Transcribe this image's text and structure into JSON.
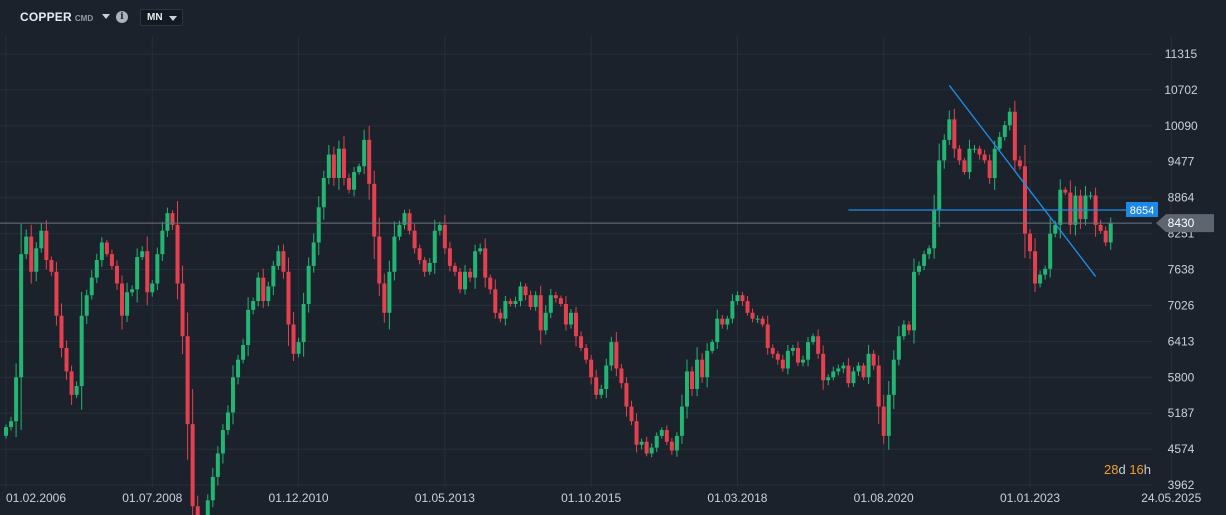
{
  "toolbar": {
    "symbol": "COPPER",
    "exchange": "CMD",
    "timeframe": "MN"
  },
  "countdown": {
    "d": "28",
    "d_unit": "d",
    "h": "16",
    "h_unit": "h"
  },
  "colors": {
    "background": "#1b222b",
    "grid": "#263039",
    "up": "#22b573",
    "down": "#e5404f",
    "trendline": "#1e90e8",
    "price_tag": "#1e88e5",
    "current_tag": "#5d6670"
  },
  "chart_data": {
    "type": "candlestick",
    "title": "",
    "y_ticks": [
      3962,
      4574,
      5187,
      5800,
      6413,
      7026,
      7638,
      8251,
      8864,
      9477,
      10090,
      10702,
      11315
    ],
    "x_ticks": [
      "01.02.2006",
      "01.07.2008",
      "01.12.2010",
      "01.05.2013",
      "01.10.2015",
      "01.03.2018",
      "01.08.2020",
      "01.01.2023",
      "24.05.2025"
    ],
    "current_price": 8430,
    "horizontal_line": {
      "price": 8654,
      "label": "8654"
    },
    "trendline": {
      "from": {
        "date": "01.09.2021",
        "price": 10780
      },
      "to": {
        "date": "01.02.2024",
        "price": 7520
      }
    },
    "grid": true,
    "series": [
      {
        "interval": "monthly",
        "start": "01.02.2006",
        "closes": [
          4950,
          5050,
          5800,
          7900,
          8200,
          7600,
          8000,
          8300,
          7800,
          7600,
          6850,
          6300,
          5900,
          5500,
          5650,
          6850,
          7200,
          7500,
          7800,
          8100,
          7900,
          7700,
          7400,
          6850,
          7250,
          7300,
          7850,
          7950,
          7250,
          7400,
          7900,
          8300,
          8600,
          8400,
          7400,
          6500,
          5000,
          3600,
          3100,
          3250,
          3700,
          4100,
          4500,
          4900,
          5200,
          5800,
          6100,
          6350,
          6950,
          7100,
          7500,
          7100,
          7350,
          7700,
          7950,
          7600,
          6700,
          6200,
          6400,
          7050,
          7700,
          8100,
          8700,
          9200,
          9600,
          9200,
          9700,
          9200,
          9000,
          9300,
          9400,
          9850,
          9100,
          8200,
          7400,
          6900,
          7600,
          8200,
          8400,
          8600,
          8300,
          8000,
          7800,
          7600,
          7750,
          8300,
          8400,
          8000,
          7700,
          7600,
          7300,
          7600,
          7500,
          7950,
          8000,
          7500,
          7300,
          6900,
          6800,
          7100,
          7050,
          7100,
          7350,
          7200,
          7000,
          7200,
          6600,
          6900,
          7200,
          7150,
          7050,
          6700,
          6900,
          6500,
          6300,
          6100,
          5800,
          5500,
          5600,
          6000,
          6400,
          5950,
          5700,
          5300,
          5050,
          4650,
          4700,
          4500,
          4600,
          4800,
          4900,
          4700,
          4550,
          4800,
          5300,
          5900,
          5600,
          6100,
          5800,
          6250,
          6400,
          6800,
          6700,
          6800,
          7100,
          7200,
          7100,
          6900,
          6800,
          6800,
          6700,
          6300,
          6200,
          6100,
          5950,
          6250,
          6300,
          6050,
          6100,
          6400,
          6500,
          6200,
          5750,
          5800,
          5900,
          5950,
          6000,
          5700,
          5900,
          6000,
          5800,
          6200,
          6000,
          5300,
          4800,
          5500,
          6100,
          6500,
          6700,
          6600,
          7600,
          7700,
          7900,
          8000,
          8650,
          9500,
          9850,
          10200,
          9700,
          9500,
          9300,
          9700,
          9700,
          9600,
          9500,
          9200,
          9700,
          9900,
          10100,
          10330,
          9500,
          9400,
          8250,
          7950,
          7400,
          7550,
          7650,
          8250,
          8400,
          9000,
          8950,
          8400,
          8900,
          8500,
          8900,
          8900,
          8400,
          8300,
          8100,
          8430
        ]
      }
    ]
  }
}
